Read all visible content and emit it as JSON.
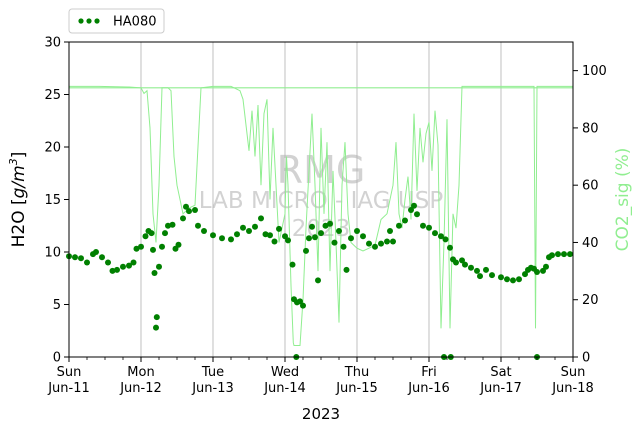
{
  "chart_data": {
    "type": "line",
    "xlabel": "2023",
    "ylabel_left": "H2O [g/m3]",
    "ylabel_right": "CO2_sig (%)",
    "ylim_left": [
      0,
      30
    ],
    "ylim_right": [
      0,
      110
    ],
    "yticks_left": [
      0,
      5,
      10,
      15,
      20,
      25,
      30
    ],
    "yticks_right": [
      0,
      20,
      40,
      60,
      80,
      100
    ],
    "xlim": [
      "2023-06-11",
      "2023-06-18"
    ],
    "xticks": [
      {
        "date": "2023-06-11",
        "day": "Sun",
        "date_label": "Jun-11"
      },
      {
        "date": "2023-06-12",
        "day": "Mon",
        "date_label": "Jun-12"
      },
      {
        "date": "2023-06-13",
        "day": "Tue",
        "date_label": "Jun-13"
      },
      {
        "date": "2023-06-14",
        "day": "Wed",
        "date_label": "Jun-14"
      },
      {
        "date": "2023-06-15",
        "day": "Thu",
        "date_label": "Jun-15"
      },
      {
        "date": "2023-06-16",
        "day": "Fri",
        "date_label": "Jun-16"
      },
      {
        "date": "2023-06-17",
        "day": "Sat",
        "date_label": "Jun-17"
      },
      {
        "date": "2023-06-18",
        "day": "Sun",
        "date_label": "Jun-18"
      }
    ],
    "grid": "vertical",
    "legend_placement": "above-left",
    "watermark": [
      "RMG",
      "LAB MICRO - IAG USP",
      "2023"
    ],
    "reference_line_right": 94,
    "series": [
      {
        "name": "HA080",
        "axis": "left",
        "style": "points",
        "color": "#008000",
        "points": [
          [
            "2023-06-11T00:00",
            9.6
          ],
          [
            "2023-06-11T02:00",
            9.5
          ],
          [
            "2023-06-11T04:00",
            9.4
          ],
          [
            "2023-06-11T06:00",
            9.0
          ],
          [
            "2023-06-11T08:00",
            9.8
          ],
          [
            "2023-06-11T09:00",
            10.0
          ],
          [
            "2023-06-11T11:00",
            9.5
          ],
          [
            "2023-06-11T13:00",
            9.0
          ],
          [
            "2023-06-11T14:30",
            8.2
          ],
          [
            "2023-06-11T16:00",
            8.3
          ],
          [
            "2023-06-11T18:00",
            8.6
          ],
          [
            "2023-06-11T20:00",
            8.7
          ],
          [
            "2023-06-11T21:30",
            9.0
          ],
          [
            "2023-06-11T22:30",
            10.3
          ],
          [
            "2023-06-12T00:00",
            10.5
          ],
          [
            "2023-06-12T01:30",
            11.5
          ],
          [
            "2023-06-12T02:30",
            12.0
          ],
          [
            "2023-06-12T03:30",
            11.8
          ],
          [
            "2023-06-12T04:00",
            10.2
          ],
          [
            "2023-06-12T04:30",
            8.0
          ],
          [
            "2023-06-12T05:00",
            2.8
          ],
          [
            "2023-06-12T05:15",
            3.8
          ],
          [
            "2023-06-12T06:00",
            8.6
          ],
          [
            "2023-06-12T07:00",
            10.5
          ],
          [
            "2023-06-12T08:00",
            11.8
          ],
          [
            "2023-06-12T09:00",
            12.5
          ],
          [
            "2023-06-12T10:30",
            12.6
          ],
          [
            "2023-06-12T11:30",
            10.3
          ],
          [
            "2023-06-12T12:30",
            10.7
          ],
          [
            "2023-06-12T14:00",
            13.2
          ],
          [
            "2023-06-12T15:00",
            14.3
          ],
          [
            "2023-06-12T16:00",
            13.9
          ],
          [
            "2023-06-12T18:00",
            14.0
          ],
          [
            "2023-06-12T19:00",
            12.5
          ],
          [
            "2023-06-12T21:00",
            12.0
          ],
          [
            "2023-06-13T00:00",
            11.6
          ],
          [
            "2023-06-13T03:00",
            11.3
          ],
          [
            "2023-06-13T06:00",
            11.2
          ],
          [
            "2023-06-13T08:00",
            11.7
          ],
          [
            "2023-06-13T10:00",
            12.3
          ],
          [
            "2023-06-13T12:00",
            12.0
          ],
          [
            "2023-06-13T14:00",
            12.4
          ],
          [
            "2023-06-13T16:00",
            13.2
          ],
          [
            "2023-06-13T17:30",
            11.7
          ],
          [
            "2023-06-13T19:00",
            11.6
          ],
          [
            "2023-06-13T20:30",
            11.0
          ],
          [
            "2023-06-13T22:00",
            12.2
          ],
          [
            "2023-06-14T00:00",
            11.5
          ],
          [
            "2023-06-14T01:00",
            11.1
          ],
          [
            "2023-06-14T02:30",
            8.8
          ],
          [
            "2023-06-14T03:00",
            5.5
          ],
          [
            "2023-06-14T04:00",
            5.2
          ],
          [
            "2023-06-14T05:00",
            5.3
          ],
          [
            "2023-06-14T06:00",
            4.9
          ],
          [
            "2023-06-14T07:00",
            10.1
          ],
          [
            "2023-06-14T08:00",
            11.3
          ],
          [
            "2023-06-14T09:00",
            12.4
          ],
          [
            "2023-06-14T10:00",
            11.4
          ],
          [
            "2023-06-14T11:00",
            7.3
          ],
          [
            "2023-06-14T12:00",
            11.8
          ],
          [
            "2023-06-14T13:30",
            12.5
          ],
          [
            "2023-06-14T15:00",
            12.7
          ],
          [
            "2023-06-14T16:30",
            10.9
          ],
          [
            "2023-06-14T18:00",
            12.0
          ],
          [
            "2023-06-14T19:30",
            10.5
          ],
          [
            "2023-06-14T20:30",
            8.3
          ],
          [
            "2023-06-14T22:00",
            11.3
          ],
          [
            "2023-06-15T00:00",
            12.0
          ],
          [
            "2023-06-15T02:00",
            11.5
          ],
          [
            "2023-06-15T04:00",
            10.8
          ],
          [
            "2023-06-15T06:00",
            10.5
          ],
          [
            "2023-06-15T08:00",
            10.8
          ],
          [
            "2023-06-15T10:00",
            11.0
          ],
          [
            "2023-06-15T11:00",
            12.0
          ],
          [
            "2023-06-15T12:00",
            11.0
          ],
          [
            "2023-06-15T14:00",
            12.5
          ],
          [
            "2023-06-15T16:00",
            13.0
          ],
          [
            "2023-06-15T18:00",
            14.0
          ],
          [
            "2023-06-15T19:00",
            14.4
          ],
          [
            "2023-06-15T20:00",
            13.6
          ],
          [
            "2023-06-15T22:00",
            12.5
          ],
          [
            "2023-06-16T00:00",
            12.3
          ],
          [
            "2023-06-16T02:00",
            11.8
          ],
          [
            "2023-06-16T04:00",
            11.5
          ],
          [
            "2023-06-16T05:30",
            11.2
          ],
          [
            "2023-06-16T07:00",
            10.4
          ],
          [
            "2023-06-16T08:00",
            9.3
          ],
          [
            "2023-06-16T09:00",
            9.0
          ],
          [
            "2023-06-16T11:00",
            9.2
          ],
          [
            "2023-06-16T12:00",
            8.8
          ],
          [
            "2023-06-16T14:00",
            8.5
          ],
          [
            "2023-06-16T16:00",
            8.2
          ],
          [
            "2023-06-16T17:00",
            7.7
          ],
          [
            "2023-06-16T19:00",
            8.3
          ],
          [
            "2023-06-16T21:00",
            7.8
          ],
          [
            "2023-06-17T00:00",
            7.6
          ],
          [
            "2023-06-17T02:00",
            7.4
          ],
          [
            "2023-06-17T04:00",
            7.3
          ],
          [
            "2023-06-17T06:00",
            7.4
          ],
          [
            "2023-06-17T08:00",
            7.9
          ],
          [
            "2023-06-17T09:00",
            8.3
          ],
          [
            "2023-06-17T10:00",
            8.5
          ],
          [
            "2023-06-17T11:00",
            8.4
          ],
          [
            "2023-06-17T12:00",
            8.1
          ],
          [
            "2023-06-17T14:00",
            8.2
          ],
          [
            "2023-06-17T15:00",
            8.6
          ],
          [
            "2023-06-17T16:00",
            9.5
          ],
          [
            "2023-06-17T17:00",
            9.7
          ],
          [
            "2023-06-17T19:00",
            9.8
          ],
          [
            "2023-06-17T21:00",
            9.8
          ],
          [
            "2023-06-17T23:00",
            9.8
          ],
          [
            "2023-06-14T03:45",
            0.0
          ],
          [
            "2023-06-16T05:00",
            0.0
          ],
          [
            "2023-06-16T07:15",
            0.0
          ],
          [
            "2023-06-17T12:00",
            0.0
          ]
        ]
      },
      {
        "axis": "right",
        "style": "line",
        "color": "#90ee90",
        "points": [
          [
            "2023-06-11T00:00",
            94.5
          ],
          [
            "2023-06-11T10:00",
            94.5
          ],
          [
            "2023-06-11T20:00",
            94.3
          ],
          [
            "2023-06-12T00:00",
            94.0
          ],
          [
            "2023-06-12T01:00",
            92.0
          ],
          [
            "2023-06-12T02:00",
            93.0
          ],
          [
            "2023-06-12T03:00",
            80.0
          ],
          [
            "2023-06-12T04:00",
            50.0
          ],
          [
            "2023-06-12T05:00",
            40.0
          ],
          [
            "2023-06-12T06:00",
            60.0
          ],
          [
            "2023-06-12T07:00",
            94.0
          ],
          [
            "2023-06-12T08:00",
            94.0
          ],
          [
            "2023-06-12T09:00",
            94.0
          ],
          [
            "2023-06-12T10:00",
            93.0
          ],
          [
            "2023-06-12T11:00",
            70.0
          ],
          [
            "2023-06-12T12:00",
            60.0
          ],
          [
            "2023-06-12T14:00",
            50.0
          ],
          [
            "2023-06-12T16:00",
            52.0
          ],
          [
            "2023-06-12T18:00",
            53.0
          ],
          [
            "2023-06-12T20:00",
            94.0
          ],
          [
            "2023-06-13T00:00",
            94.5
          ],
          [
            "2023-06-13T06:00",
            94.5
          ],
          [
            "2023-06-13T09:00",
            93.0
          ],
          [
            "2023-06-13T10:00",
            90.0
          ],
          [
            "2023-06-13T12:00",
            72.0
          ],
          [
            "2023-06-13T13:00",
            86.0
          ],
          [
            "2023-06-13T14:00",
            70.0
          ],
          [
            "2023-06-13T15:00",
            88.0
          ],
          [
            "2023-06-13T16:00",
            60.0
          ],
          [
            "2023-06-13T17:00",
            85.0
          ],
          [
            "2023-06-13T18:00",
            90.0
          ],
          [
            "2023-06-13T19:00",
            55.0
          ],
          [
            "2023-06-13T20:00",
            80.0
          ],
          [
            "2023-06-13T21:00",
            60.0
          ],
          [
            "2023-06-13T22:00",
            40.0
          ],
          [
            "2023-06-14T00:00",
            50.0
          ],
          [
            "2023-06-14T00:30",
            70.0
          ],
          [
            "2023-06-14T01:00",
            60.0
          ],
          [
            "2023-06-14T02:00",
            25.0
          ],
          [
            "2023-06-14T02:45",
            5.0
          ],
          [
            "2023-06-14T03:00",
            4.0
          ],
          [
            "2023-06-14T05:00",
            4.0
          ],
          [
            "2023-06-14T06:00",
            20.0
          ],
          [
            "2023-06-14T07:00",
            45.0
          ],
          [
            "2023-06-14T08:00",
            65.0
          ],
          [
            "2023-06-14T09:00",
            85.0
          ],
          [
            "2023-06-14T10:00",
            60.0
          ],
          [
            "2023-06-14T11:00",
            30.0
          ],
          [
            "2023-06-14T12:00",
            80.0
          ],
          [
            "2023-06-14T13:00",
            50.0
          ],
          [
            "2023-06-14T14:00",
            75.0
          ],
          [
            "2023-06-14T15:00",
            30.0
          ],
          [
            "2023-06-14T16:00",
            65.0
          ],
          [
            "2023-06-14T17:00",
            40.0
          ],
          [
            "2023-06-14T18:00",
            12.0
          ],
          [
            "2023-06-14T19:00",
            60.0
          ],
          [
            "2023-06-14T20:00",
            75.0
          ],
          [
            "2023-06-14T21:00",
            50.0
          ],
          [
            "2023-06-14T22:00",
            40.0
          ],
          [
            "2023-06-15T00:00",
            38.0
          ],
          [
            "2023-06-15T02:00",
            37.0
          ],
          [
            "2023-06-15T04:00",
            38.0
          ],
          [
            "2023-06-15T06:00",
            39.0
          ],
          [
            "2023-06-15T08:00",
            48.0
          ],
          [
            "2023-06-15T10:00",
            50.0
          ],
          [
            "2023-06-15T12:00",
            60.0
          ],
          [
            "2023-06-15T13:00",
            75.0
          ],
          [
            "2023-06-15T14:00",
            50.0
          ],
          [
            "2023-06-15T15:00",
            45.0
          ],
          [
            "2023-06-15T16:00",
            55.0
          ],
          [
            "2023-06-15T17:00",
            63.0
          ],
          [
            "2023-06-15T18:00",
            48.0
          ],
          [
            "2023-06-15T19:00",
            85.0
          ],
          [
            "2023-06-15T20:00",
            58.0
          ],
          [
            "2023-06-15T21:00",
            80.0
          ],
          [
            "2023-06-15T22:00",
            68.0
          ],
          [
            "2023-06-15T23:00",
            78.0
          ],
          [
            "2023-06-16T00:00",
            82.0
          ],
          [
            "2023-06-16T01:00",
            65.0
          ],
          [
            "2023-06-16T02:00",
            86.0
          ],
          [
            "2023-06-16T03:00",
            74.0
          ],
          [
            "2023-06-16T04:00",
            10.0
          ],
          [
            "2023-06-16T05:00",
            40.0
          ],
          [
            "2023-06-16T06:00",
            83.0
          ],
          [
            "2023-06-16T07:00",
            10.0
          ],
          [
            "2023-06-16T08:00",
            50.0
          ],
          [
            "2023-06-16T09:00",
            45.0
          ],
          [
            "2023-06-16T10:00",
            60.0
          ],
          [
            "2023-06-16T11:00",
            94.5
          ],
          [
            "2023-06-16T16:00",
            94.5
          ],
          [
            "2023-06-17T00:00",
            94.5
          ],
          [
            "2023-06-17T11:00",
            94.5
          ],
          [
            "2023-06-17T11:30",
            10.0
          ],
          [
            "2023-06-17T12:00",
            94.5
          ],
          [
            "2023-06-17T18:00",
            94.5
          ],
          [
            "2023-06-18T00:00",
            94.5
          ]
        ]
      }
    ]
  }
}
